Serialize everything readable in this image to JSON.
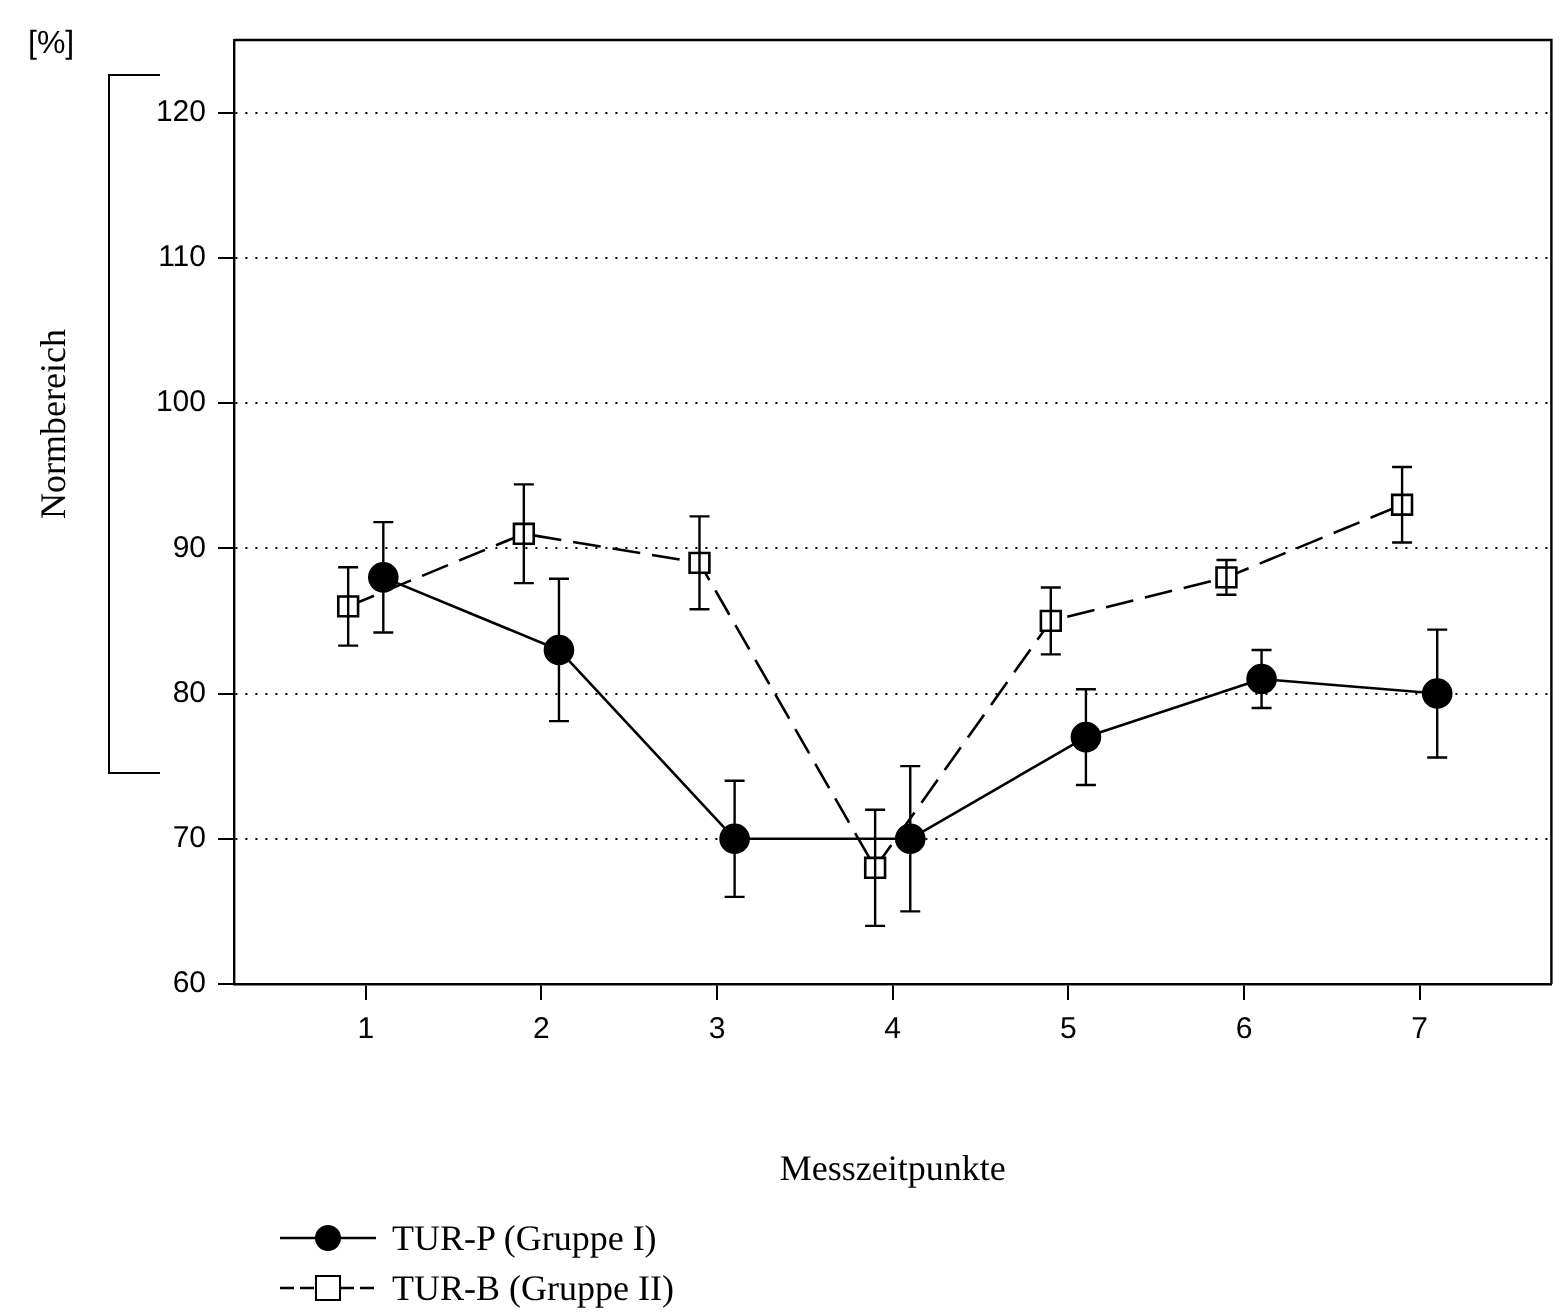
{
  "chart_data": {
    "type": "line",
    "xlabel": "Messzeitpunkte",
    "ylabel": "[%]",
    "xlim": [
      0.25,
      7.75
    ],
    "xticks": [
      1,
      2,
      3,
      4,
      5,
      6,
      7
    ],
    "ylim": [
      60,
      125
    ],
    "yticks": [
      60,
      70,
      80,
      90,
      100,
      110,
      120
    ],
    "grid": "y",
    "legend": "bottom left",
    "annotations": [
      "Normbereich"
    ],
    "series": [
      {
        "name": "TUR-P (Gruppe I)",
        "color": "#000000",
        "marker": "circle",
        "line_style": "solid",
        "x": [
          1.1,
          2.1,
          3.1,
          4.1,
          5.1,
          6.1,
          7.1
        ],
        "values": [
          88,
          83,
          70,
          70,
          77,
          81,
          80
        ],
        "errors": [
          3.8,
          4.9,
          4,
          5,
          3.3,
          2,
          4.4
        ]
      },
      {
        "name": "TUR-B (Gruppe II)",
        "color": "#000000",
        "marker": "square",
        "line_style": "dashed",
        "x": [
          0.9,
          1.9,
          2.9,
          3.9,
          4.9,
          5.9,
          6.9
        ],
        "values": [
          86,
          91,
          89,
          68,
          85,
          88,
          93
        ],
        "errors": [
          2.7,
          3.4,
          3.2,
          4,
          2.3,
          1.2,
          2.6
        ]
      }
    ]
  }
}
